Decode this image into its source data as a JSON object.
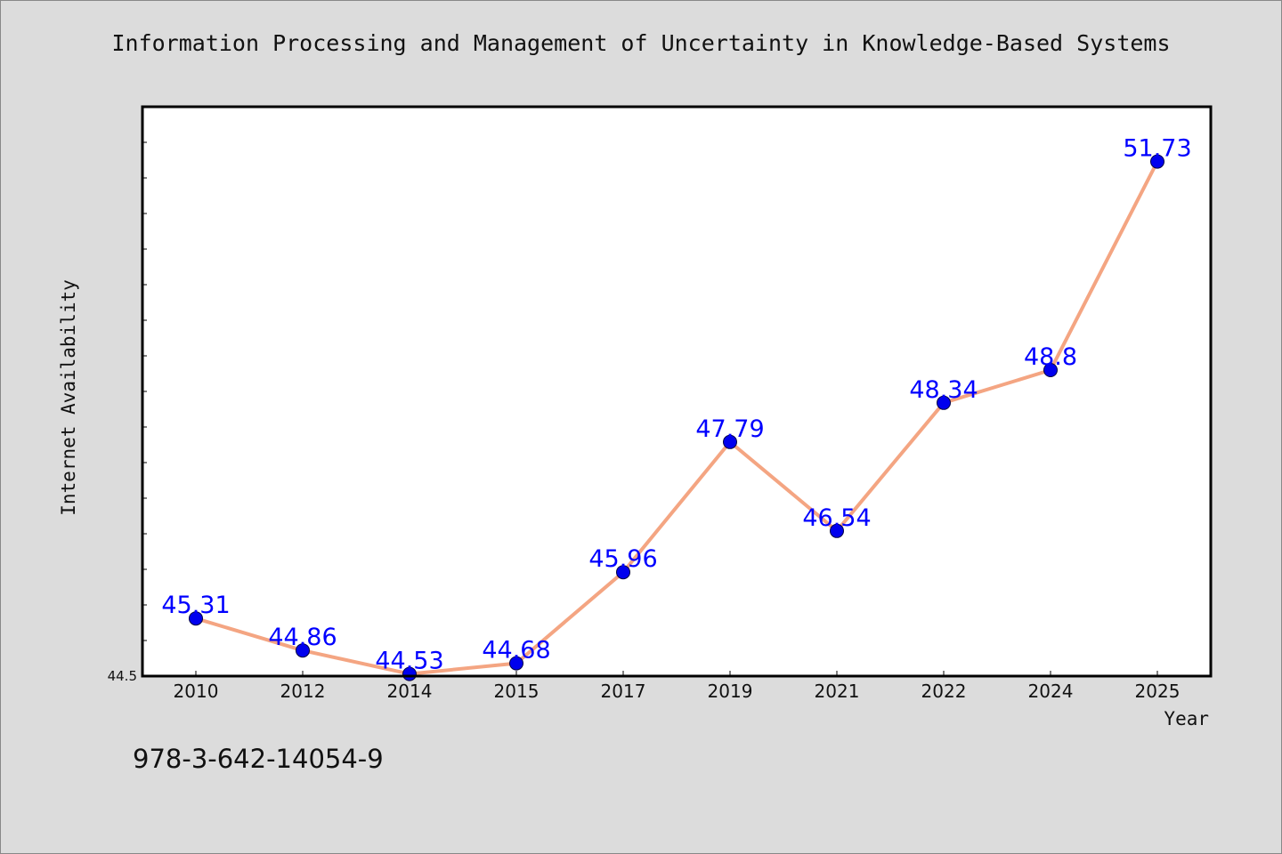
{
  "colors": {
    "background": "#dcdcdc",
    "plot_background": "#ffffff",
    "line": "#f4a582",
    "marker": "#0000ee",
    "label": "#0000ff",
    "axis": "#000000"
  },
  "footer_text": "978-3-642-14054-9",
  "chart_data": {
    "type": "line",
    "title": "Information Processing and Management of Uncertainty in Knowledge-Based Systems",
    "xlabel": "Year",
    "ylabel": "Internet Availability",
    "categories": [
      "2010",
      "2012",
      "2014",
      "2015",
      "2017",
      "2019",
      "2021",
      "2022",
      "2024",
      "2025"
    ],
    "series": [
      {
        "values": [
          45.31,
          44.86,
          44.53,
          44.68,
          45.96,
          47.79,
          46.54,
          48.34,
          48.8,
          51.73
        ]
      }
    ],
    "y_tick_labels": [
      "44.5"
    ],
    "ylim": [
      44.5,
      52.5
    ],
    "y_minor_tick_step": 0.5,
    "grid": false,
    "legend": "none",
    "data_labels": true
  }
}
